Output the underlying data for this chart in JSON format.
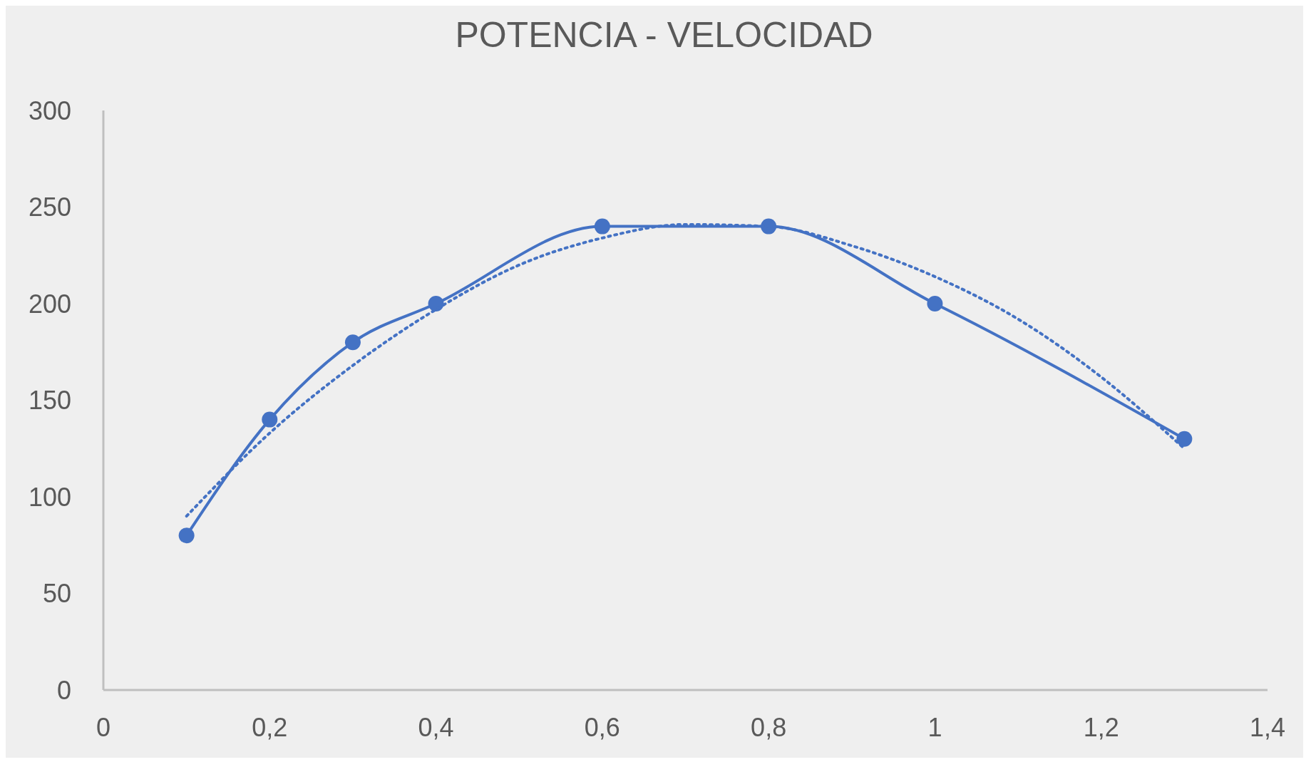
{
  "chart_data": {
    "type": "line",
    "title": "POTENCIA - VELOCIDAD",
    "xlim": [
      0,
      1.4
    ],
    "xticks": [
      0,
      {
        "value": 0.2,
        "label": "0,2"
      },
      {
        "value": 0.4,
        "label": "0,4"
      },
      {
        "value": 0.6,
        "label": "0,6"
      },
      {
        "value": 0.8,
        "label": "0,8"
      },
      1,
      {
        "value": 1.2,
        "label": "1,2"
      },
      {
        "value": 1.4,
        "label": "1,4"
      }
    ],
    "ylim": [
      0,
      300
    ],
    "yticks": [
      0,
      50,
      100,
      150,
      200,
      250,
      300
    ],
    "grid": false,
    "series": [
      {
        "color": "#4472c4",
        "marker": "circle",
        "line_style": "solid",
        "x": [
          0.1,
          0.2,
          0.3,
          0.4,
          0.6,
          0.8,
          1,
          1.3
        ],
        "values": [
          80,
          140,
          180,
          200,
          240,
          240,
          200,
          130
        ]
      },
      {
        "color": "#4472c4",
        "marker": "none",
        "line_style": "dotted",
        "x": [
          0.1,
          0.2,
          0.3,
          0.4,
          0.5,
          0.6,
          0.7,
          0.8,
          0.9,
          1.0,
          1.1,
          1.2,
          1.3
        ],
        "values": [
          90,
          133,
          168,
          197,
          220,
          234,
          241,
          240,
          230,
          214,
          192,
          162,
          125
        ]
      }
    ]
  }
}
